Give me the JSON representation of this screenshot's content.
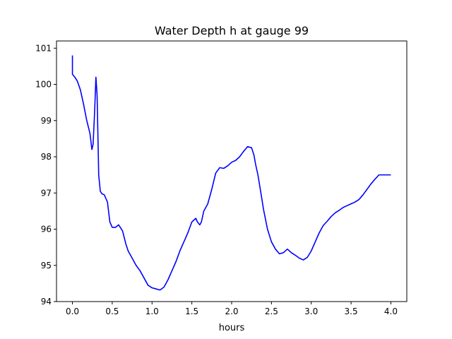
{
  "chart_data": {
    "type": "line",
    "title": "Water Depth h at gauge 99",
    "xlabel": "hours",
    "ylabel": "",
    "xlim": [
      -0.2,
      4.2
    ],
    "ylim": [
      94,
      101.2
    ],
    "xticks": [
      0.0,
      0.5,
      1.0,
      1.5,
      2.0,
      2.5,
      3.0,
      3.5,
      4.0
    ],
    "xtick_labels": [
      "0.0",
      "0.5",
      "1.0",
      "1.5",
      "2.0",
      "2.5",
      "3.0",
      "3.5",
      "4.0"
    ],
    "yticks": [
      94,
      95,
      96,
      97,
      98,
      99,
      100,
      101
    ],
    "ytick_labels": [
      "94",
      "95",
      "96",
      "97",
      "98",
      "99",
      "100",
      "101"
    ],
    "grid": false,
    "legend": "none",
    "series": [
      {
        "color": "#0000ff",
        "x": [
          0.0,
          0.0,
          0.0,
          0.03,
          0.06,
          0.1,
          0.14,
          0.18,
          0.22,
          0.245,
          0.26,
          0.28,
          0.295,
          0.31,
          0.33,
          0.35,
          0.37,
          0.4,
          0.44,
          0.47,
          0.5,
          0.54,
          0.58,
          0.63,
          0.67,
          0.7,
          0.75,
          0.8,
          0.85,
          0.9,
          0.95,
          1.0,
          1.05,
          1.1,
          1.15,
          1.2,
          1.25,
          1.3,
          1.35,
          1.4,
          1.45,
          1.5,
          1.55,
          1.57,
          1.6,
          1.62,
          1.65,
          1.68,
          1.7,
          1.75,
          1.8,
          1.85,
          1.9,
          1.95,
          2.0,
          2.05,
          2.1,
          2.15,
          2.2,
          2.25,
          2.28,
          2.3,
          2.33,
          2.36,
          2.4,
          2.45,
          2.5,
          2.55,
          2.6,
          2.65,
          2.7,
          2.75,
          2.8,
          2.85,
          2.9,
          2.95,
          3.0,
          3.05,
          3.1,
          3.15,
          3.2,
          3.25,
          3.3,
          3.35,
          3.4,
          3.45,
          3.5,
          3.55,
          3.6,
          3.65,
          3.7,
          3.75,
          3.8,
          3.85,
          3.9,
          3.95,
          4.0
        ],
        "y": [
          100.8,
          100.3,
          100.28,
          100.2,
          100.1,
          99.85,
          99.45,
          99.0,
          98.65,
          98.2,
          98.35,
          99.3,
          100.2,
          99.7,
          97.5,
          97.05,
          96.98,
          96.95,
          96.75,
          96.2,
          96.05,
          96.05,
          96.12,
          95.95,
          95.6,
          95.4,
          95.2,
          95.0,
          94.85,
          94.65,
          94.45,
          94.38,
          94.35,
          94.32,
          94.4,
          94.6,
          94.85,
          95.1,
          95.4,
          95.65,
          95.9,
          96.2,
          96.3,
          96.2,
          96.12,
          96.2,
          96.5,
          96.62,
          96.7,
          97.1,
          97.55,
          97.7,
          97.68,
          97.75,
          97.85,
          97.9,
          98.0,
          98.15,
          98.28,
          98.25,
          98.05,
          97.8,
          97.5,
          97.1,
          96.55,
          96.0,
          95.65,
          95.45,
          95.32,
          95.35,
          95.45,
          95.35,
          95.28,
          95.2,
          95.15,
          95.22,
          95.4,
          95.65,
          95.9,
          96.1,
          96.22,
          96.35,
          96.45,
          96.52,
          96.6,
          96.65,
          96.7,
          96.75,
          96.82,
          96.95,
          97.1,
          97.25,
          97.38,
          97.5,
          97.5,
          97.5,
          97.5
        ]
      }
    ]
  }
}
